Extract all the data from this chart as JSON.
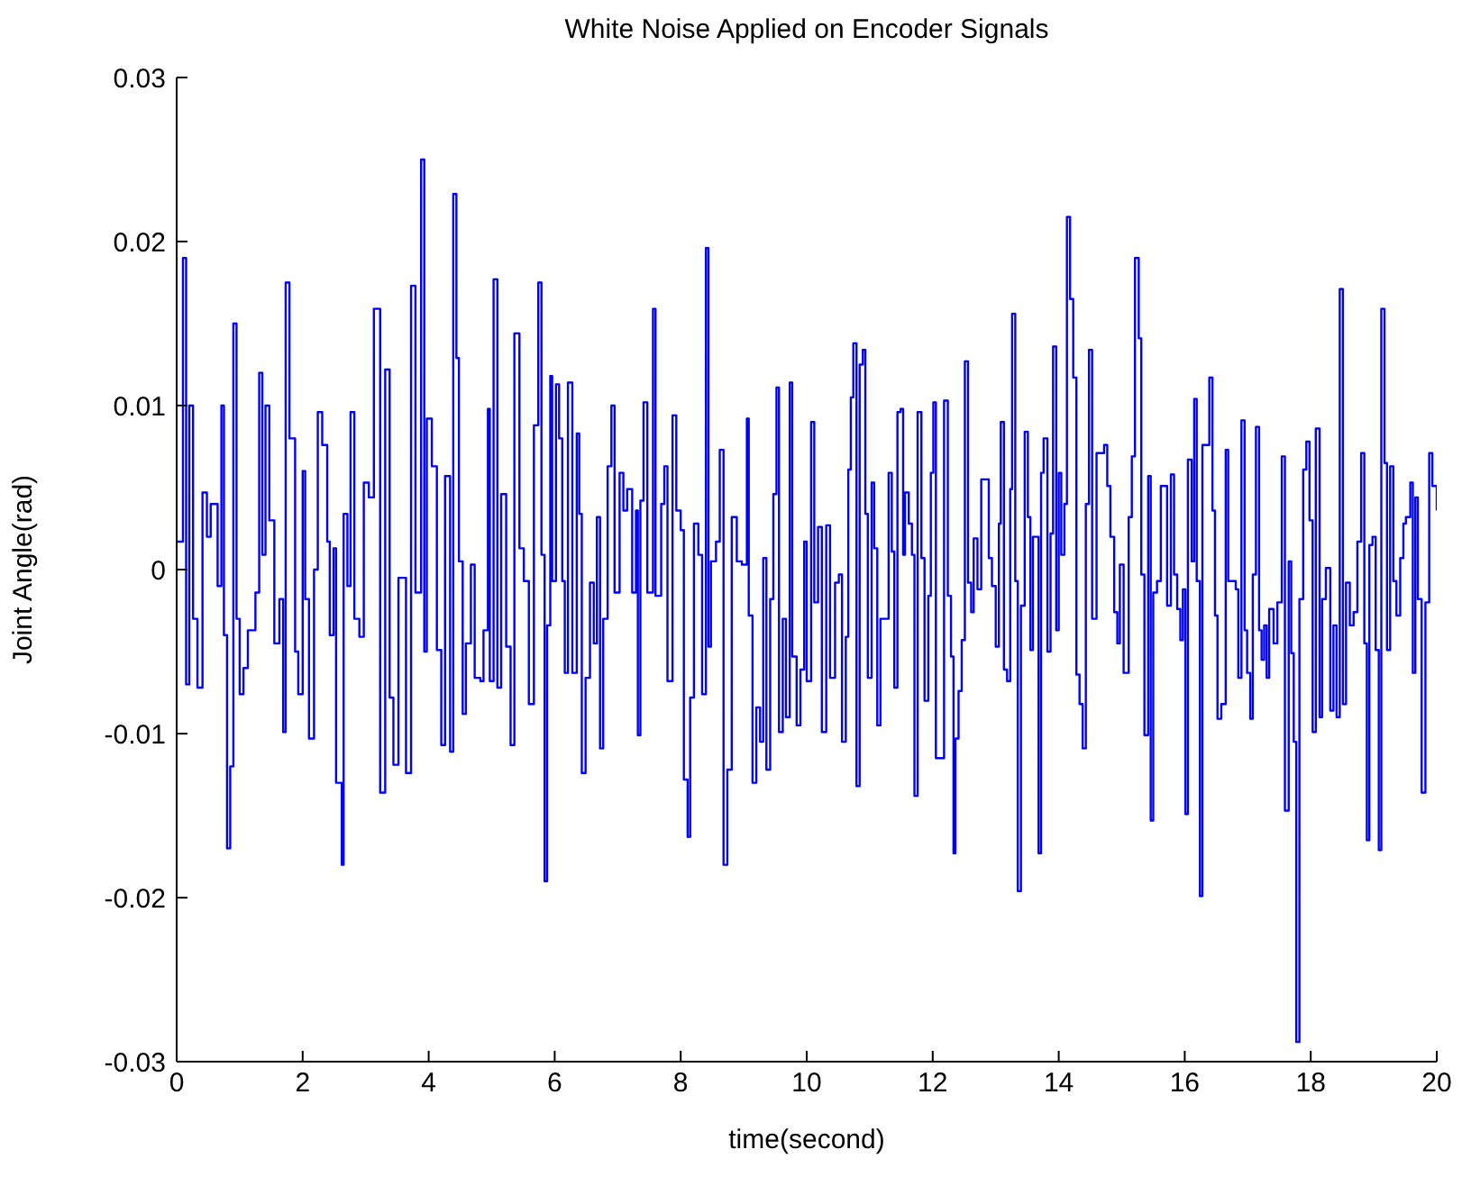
{
  "chart_data": {
    "type": "step",
    "title": "White Noise Applied on Encoder Signals",
    "xlabel": "time(second)",
    "ylabel": "Joint Angle(rad)",
    "color": "#0000ff",
    "marker": "none",
    "grid": false,
    "legend": false,
    "xlim": [
      0,
      20
    ],
    "xticks": [
      0,
      2,
      4,
      6,
      8,
      10,
      12,
      14,
      16,
      18,
      20
    ],
    "ylim": [
      -0.03,
      0.03
    ],
    "yticks": [
      -0.03,
      -0.02,
      -0.01,
      0,
      0.01,
      0.02,
      0.03
    ],
    "x": [
      0,
      0.1,
      0.15,
      0.2,
      0.26,
      0.33,
      0.41,
      0.48,
      0.54,
      0.65,
      0.71,
      0.75,
      0.8,
      0.85,
      0.9,
      0.95,
      1.0,
      1.06,
      1.13,
      1.25,
      1.31,
      1.36,
      1.41,
      1.47,
      1.55,
      1.63,
      1.69,
      1.73,
      1.79,
      1.88,
      1.93,
      2.0,
      2.04,
      2.1,
      2.18,
      2.24,
      2.31,
      2.39,
      2.43,
      2.49,
      2.53,
      2.62,
      2.65,
      2.71,
      2.76,
      2.82,
      2.9,
      2.97,
      3.05,
      3.13,
      3.23,
      3.31,
      3.38,
      3.44,
      3.52,
      3.64,
      3.72,
      3.79,
      3.88,
      3.93,
      3.97,
      4.05,
      4.13,
      4.2,
      4.26,
      4.34,
      4.39,
      4.44,
      4.48,
      4.54,
      4.59,
      4.67,
      4.73,
      4.82,
      4.87,
      4.94,
      4.97,
      5.03,
      5.09,
      5.15,
      5.23,
      5.3,
      5.36,
      5.44,
      5.51,
      5.59,
      5.67,
      5.74,
      5.79,
      5.84,
      5.88,
      5.93,
      5.96,
      6.02,
      6.07,
      6.12,
      6.16,
      6.21,
      6.28,
      6.35,
      6.39,
      6.43,
      6.49,
      6.56,
      6.62,
      6.67,
      6.72,
      6.77,
      6.84,
      6.9,
      6.95,
      7.03,
      7.09,
      7.15,
      7.23,
      7.29,
      7.32,
      7.36,
      7.41,
      7.47,
      7.56,
      7.6,
      7.69,
      7.74,
      7.79,
      7.87,
      7.93,
      8.0,
      8.05,
      8.11,
      8.15,
      8.21,
      8.28,
      8.34,
      8.4,
      8.44,
      8.48,
      8.56,
      8.62,
      8.68,
      8.74,
      8.81,
      8.89,
      8.97,
      9.05,
      9.08,
      9.14,
      9.2,
      9.26,
      9.31,
      9.36,
      9.42,
      9.47,
      9.52,
      9.56,
      9.62,
      9.67,
      9.73,
      9.77,
      9.84,
      9.9,
      9.96,
      10.0,
      10.07,
      10.12,
      10.18,
      10.24,
      10.31,
      10.37,
      10.45,
      10.51,
      10.56,
      10.62,
      10.66,
      10.7,
      10.74,
      10.79,
      10.84,
      10.89,
      10.93,
      10.97,
      11.03,
      11.07,
      11.12,
      11.17,
      11.27,
      11.3,
      11.35,
      11.39,
      11.44,
      11.49,
      11.53,
      11.56,
      11.62,
      11.67,
      11.71,
      11.76,
      11.82,
      11.87,
      11.93,
      11.97,
      12.01,
      12.05,
      12.18,
      12.24,
      12.29,
      12.33,
      12.36,
      12.41,
      12.46,
      12.51,
      12.56,
      12.61,
      12.65,
      12.71,
      12.77,
      12.89,
      12.94,
      13.0,
      13.05,
      13.08,
      13.13,
      13.18,
      13.23,
      13.26,
      13.31,
      13.35,
      13.4,
      13.46,
      13.51,
      13.55,
      13.59,
      13.68,
      13.72,
      13.76,
      13.82,
      13.87,
      13.91,
      13.96,
      14.0,
      14.04,
      14.09,
      14.13,
      14.18,
      14.23,
      14.28,
      14.33,
      14.38,
      14.43,
      14.48,
      14.53,
      14.6,
      14.72,
      14.77,
      14.82,
      14.88,
      14.93,
      14.97,
      15.03,
      15.11,
      15.16,
      15.21,
      15.27,
      15.31,
      15.36,
      15.42,
      15.46,
      15.5,
      15.56,
      15.62,
      15.72,
      15.78,
      15.83,
      15.88,
      15.93,
      15.97,
      16.01,
      16.05,
      16.11,
      16.15,
      16.19,
      16.24,
      16.28,
      16.39,
      16.44,
      16.48,
      16.52,
      16.58,
      16.65,
      16.69,
      16.81,
      16.85,
      16.9,
      16.95,
      16.99,
      17.04,
      17.08,
      17.13,
      17.18,
      17.22,
      17.26,
      17.3,
      17.34,
      17.41,
      17.47,
      17.54,
      17.59,
      17.65,
      17.69,
      17.73,
      17.77,
      17.82,
      17.88,
      17.93,
      17.98,
      18.03,
      18.08,
      18.14,
      18.18,
      18.24,
      18.31,
      18.36,
      18.41,
      18.46,
      18.51,
      18.56,
      18.62,
      18.68,
      18.74,
      18.8,
      18.85,
      18.89,
      18.93,
      18.98,
      19.03,
      19.08,
      19.12,
      19.17,
      19.21,
      19.26,
      19.31,
      19.36,
      19.42,
      19.47,
      19.51,
      19.58,
      19.62,
      19.66,
      19.7,
      19.76,
      19.82,
      19.88,
      19.93,
      20.0
    ],
    "values": [
      0.0017,
      0.019,
      -0.007,
      0.01,
      -0.003,
      -0.0072,
      0.0047,
      0.002,
      0.004,
      -0.001,
      0.01,
      -0.004,
      -0.017,
      -0.012,
      0.015,
      -0.003,
      -0.0076,
      -0.006,
      -0.0037,
      -0.0014,
      0.012,
      0.0009,
      0.01,
      0.003,
      -0.0045,
      -0.0018,
      -0.0099,
      0.0175,
      0.008,
      -0.005,
      -0.0076,
      0.006,
      -0.0018,
      -0.0103,
      0,
      0.0096,
      0.0076,
      0.0017,
      -0.004,
      0.0013,
      -0.013,
      -0.018,
      0.0034,
      -0.001,
      0.0096,
      -0.003,
      -0.0041,
      0.0053,
      0.0044,
      0.0159,
      -0.0136,
      0.0122,
      -0.0078,
      -0.0119,
      -0.0005,
      -0.0124,
      0.0173,
      -0.0014,
      0.025,
      -0.005,
      0.0092,
      0.0063,
      -0.0049,
      -0.0107,
      0.0057,
      -0.0111,
      0.0229,
      0.0129,
      0.0005,
      -0.0088,
      -0.0045,
      0.0003,
      -0.0066,
      -0.0068,
      -0.0037,
      0.0098,
      -0.0068,
      0.0177,
      -0.0072,
      0.0046,
      -0.0047,
      -0.0107,
      0.0144,
      0.0013,
      -0.0007,
      -0.0082,
      0.0088,
      0.0175,
      0.0009,
      -0.019,
      -0.0034,
      0.0118,
      -0.0007,
      0.0113,
      0.008,
      -0.0007,
      -0.0063,
      0.0114,
      -0.0063,
      0.0083,
      0.0034,
      -0.0124,
      -0.0066,
      -0.0008,
      -0.0045,
      0.0032,
      -0.0109,
      -0.003,
      0.0063,
      0.01,
      -0.0014,
      0.0059,
      0.0036,
      0.0049,
      -0.0014,
      0.0036,
      -0.0101,
      0.0042,
      0.0102,
      -0.0014,
      0.0159,
      -0.0016,
      0.004,
      0.0063,
      -0.0068,
      0.0094,
      0.0036,
      0.0024,
      -0.0128,
      -0.0163,
      -0.0078,
      0.0028,
      0.0009,
      -0.0076,
      0.0196,
      -0.0047,
      0.0005,
      0.0017,
      0.0073,
      -0.018,
      -0.0122,
      0.0032,
      0.0005,
      0.0003,
      0.0092,
      -0.0028,
      -0.013,
      -0.0084,
      -0.0105,
      0.0007,
      -0.0122,
      -0.0018,
      0.0046,
      0.0111,
      -0.0099,
      -0.003,
      -0.009,
      0.0114,
      -0.0053,
      -0.0095,
      -0.0061,
      0.0017,
      -0.0068,
      0.009,
      -0.002,
      0.0026,
      -0.0099,
      0.0027,
      -0.0066,
      -0.0008,
      -0.0003,
      -0.0105,
      -0.0041,
      0.0061,
      0.0105,
      0.0138,
      -0.0132,
      0.0125,
      0.0134,
      0.0034,
      -0.0066,
      0.0053,
      0.0013,
      -0.0095,
      -0.003,
      -0.003,
      0.0059,
      0.0011,
      -0.0072,
      0.0096,
      0.0098,
      0.0009,
      0.0047,
      0.0028,
      0.0009,
      -0.0138,
      0.0096,
      0.0007,
      -0.008,
      -0.0016,
      0.0059,
      0.0102,
      -0.0115,
      0.0103,
      -0.0016,
      -0.0053,
      -0.0173,
      -0.0103,
      -0.0074,
      -0.0043,
      0.0127,
      -0.0008,
      -0.0026,
      0.0019,
      -0.0012,
      0.0055,
      0.0007,
      -0.001,
      -0.0047,
      0.0028,
      0.009,
      -0.0061,
      -0.0068,
      0.0049,
      0.0156,
      -0.0007,
      -0.0196,
      -0.0022,
      0.0084,
      0.0032,
      -0.0049,
      0.002,
      -0.0173,
      0.0059,
      0.008,
      -0.005,
      0.0022,
      0.0136,
      -0.0037,
      0.0059,
      0.0009,
      0.004,
      0.0215,
      0.0165,
      0.0117,
      -0.0064,
      -0.0082,
      -0.0109,
      0.004,
      0.0134,
      -0.003,
      0.0071,
      0.0076,
      0.0051,
      0.002,
      -0.0026,
      -0.0045,
      0.0003,
      -0.0063,
      0.0032,
      0.0069,
      0.019,
      0.0141,
      -0.0003,
      -0.0101,
      0.0057,
      -0.0153,
      -0.0014,
      -0.0007,
      0.0051,
      -0.0022,
      0.0058,
      -0.0003,
      -0.0024,
      -0.0043,
      -0.0012,
      -0.0149,
      0.0067,
      0.0005,
      0.0104,
      -0.0007,
      -0.0199,
      0.0076,
      0.0117,
      0.0036,
      -0.0028,
      -0.0091,
      -0.0082,
      0.0073,
      -0.0007,
      -0.0012,
      -0.0066,
      0.0091,
      -0.0037,
      -0.0063,
      -0.0091,
      -0.0003,
      0.0087,
      -0.0037,
      -0.0055,
      -0.0034,
      -0.0066,
      -0.0024,
      -0.0045,
      -0.002,
      0.0069,
      -0.0147,
      0.0005,
      -0.0051,
      -0.0105,
      -0.0288,
      -0.0018,
      0.0061,
      0.0078,
      0.003,
      -0.0099,
      0.0086,
      -0.009,
      -0.0018,
      0.0001,
      -0.0086,
      -0.0034,
      -0.009,
      0.0171,
      -0.0082,
      -0.0008,
      -0.0034,
      -0.0026,
      0.0017,
      0.0071,
      -0.0045,
      -0.0165,
      0.0015,
      0.002,
      -0.0049,
      -0.0171,
      0.0159,
      0.0065,
      -0.0049,
      0.0063,
      -0.0007,
      -0.0028,
      0.0007,
      0.0028,
      0.0032,
      0.0053,
      -0.0063,
      0.0044,
      -0.0018,
      -0.0136,
      -0.002,
      0.0071,
      0.0051,
      0.0036
    ]
  }
}
